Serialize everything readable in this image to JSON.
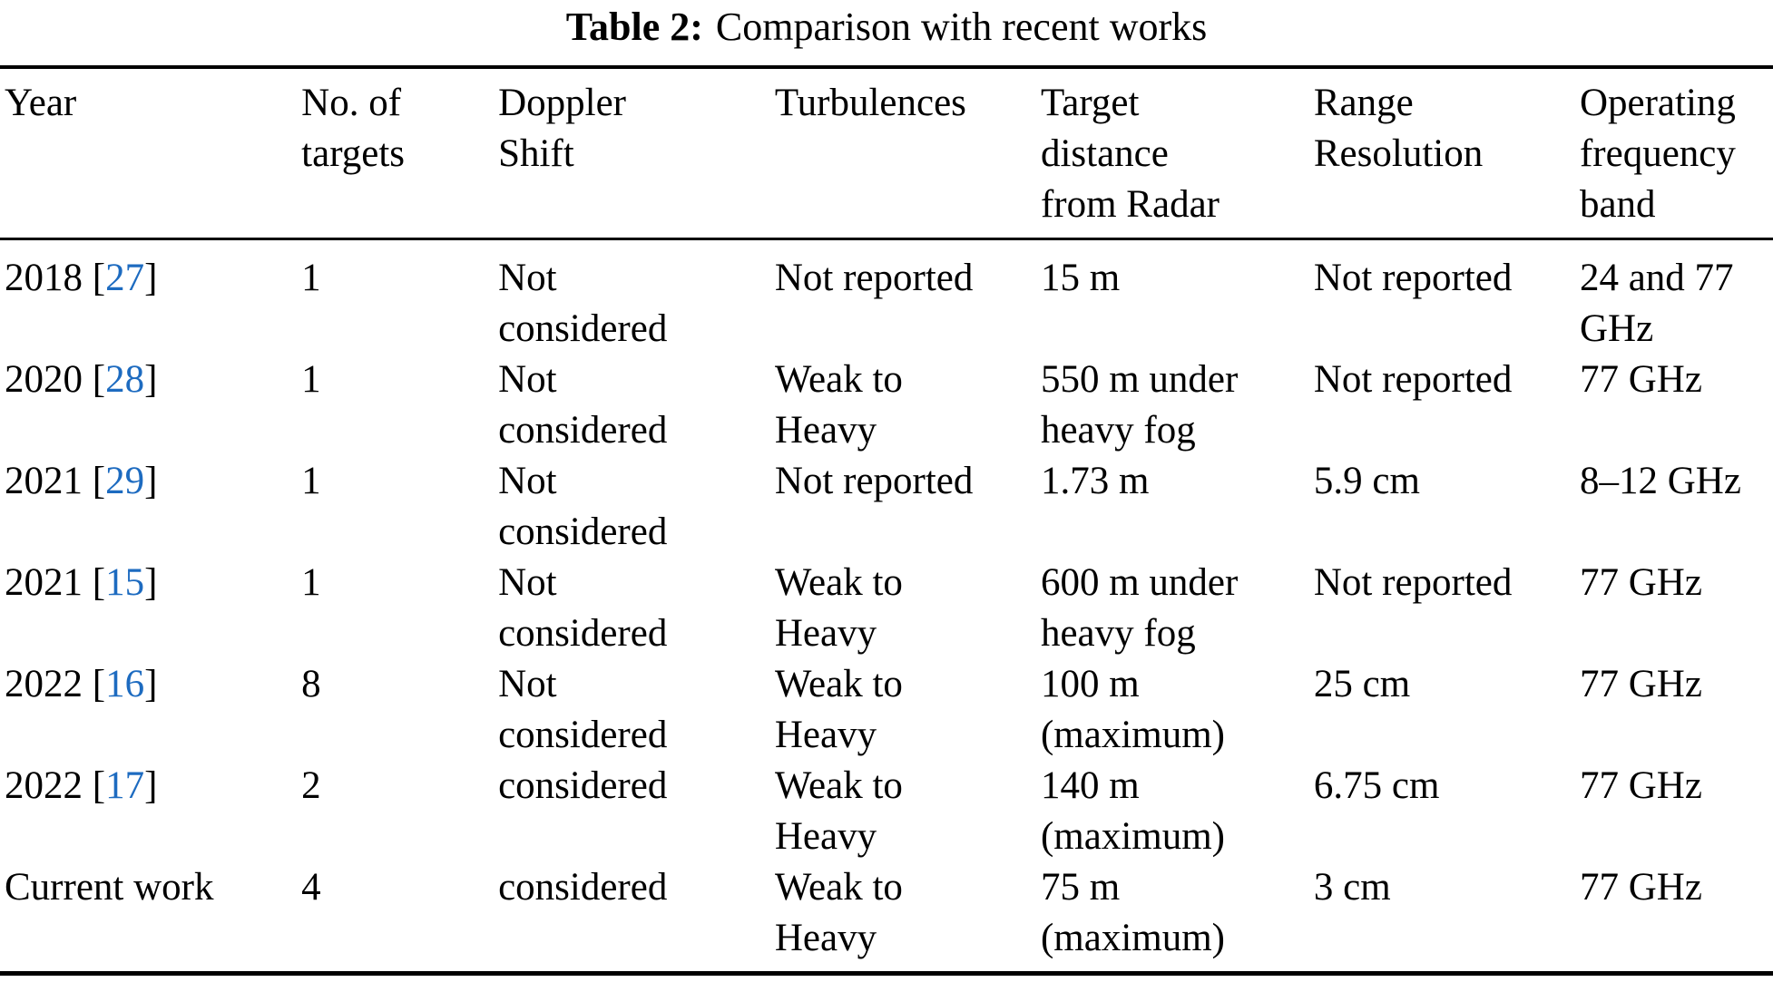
{
  "caption": {
    "label": "Table 2:",
    "text": "Comparison with recent works"
  },
  "colors": {
    "citation": "#1d6bc0",
    "text": "#000000",
    "rule": "#000000"
  },
  "columns": [
    "Year",
    "No. of\ntargets",
    "Doppler\nShift",
    "Turbulences",
    "Target\ndistance\nfrom Radar",
    "Range\nResolution",
    "Operating\nfrequency\nband"
  ],
  "rows": [
    {
      "year_text": "2018 [",
      "cite": "27",
      "cite_close": "]",
      "targets": "1",
      "doppler": "Not\nconsidered",
      "turbulences": "Not reported",
      "distance": "15 m",
      "resolution": "Not reported",
      "band": "24 and 77\nGHz"
    },
    {
      "year_text": "2020 [",
      "cite": "28",
      "cite_close": "]",
      "targets": "1",
      "doppler": "Not\nconsidered",
      "turbulences": "Weak to\nHeavy",
      "distance": "550 m under\nheavy fog",
      "resolution": "Not reported",
      "band": "77 GHz"
    },
    {
      "year_text": "2021 [",
      "cite": "29",
      "cite_close": "]",
      "targets": "1",
      "doppler": "Not\nconsidered",
      "turbulences": "Not reported",
      "distance": "1.73 m",
      "resolution": "5.9 cm",
      "band": "8–12 GHz"
    },
    {
      "year_text": "2021 [",
      "cite": "15",
      "cite_close": "]",
      "targets": "1",
      "doppler": "Not\nconsidered",
      "turbulences": "Weak to\nHeavy",
      "distance": "600 m under\nheavy fog",
      "resolution": "Not reported",
      "band": "77 GHz"
    },
    {
      "year_text": "2022 [",
      "cite": "16",
      "cite_close": "]",
      "targets": "8",
      "doppler": "Not\nconsidered",
      "turbulences": "Weak to\nHeavy",
      "distance": "100 m\n(maximum)",
      "resolution": "25 cm",
      "band": "77 GHz"
    },
    {
      "year_text": "2022 [",
      "cite": "17",
      "cite_close": "]",
      "targets": "2",
      "doppler": "considered",
      "turbulences": "Weak to\nHeavy",
      "distance": "140 m\n(maximum)",
      "resolution": "6.75 cm",
      "band": "77 GHz"
    },
    {
      "year_text": "Current work",
      "cite": "",
      "cite_close": "",
      "targets": "4",
      "doppler": "considered",
      "turbulences": "Weak to\nHeavy",
      "distance": "75 m\n(maximum)",
      "resolution": "3 cm",
      "band": "77 GHz"
    }
  ]
}
